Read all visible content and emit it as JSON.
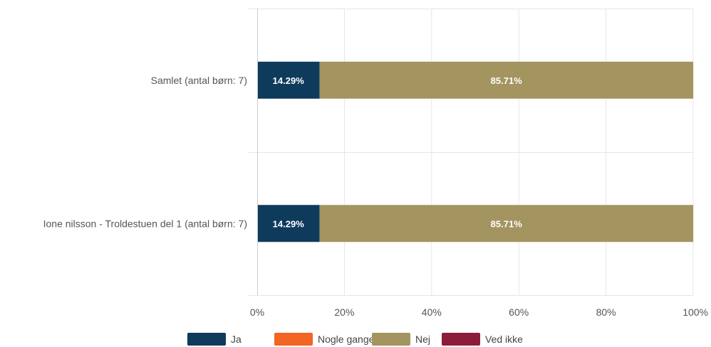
{
  "chart_data": {
    "type": "bar",
    "orientation": "horizontal",
    "stacked": "percent",
    "categories": [
      "Samlet (antal børn: 7)",
      "Ione nilsson - Troldestuen del 1 (antal børn: 7)"
    ],
    "series": [
      {
        "name": "Ja",
        "color": "#0e3a5c",
        "values": [
          14.29,
          14.29
        ],
        "labels": [
          "14.29%",
          "14.29%"
        ]
      },
      {
        "name": "Nogle gange",
        "color": "#f26522",
        "values": [
          0,
          0
        ],
        "labels": [
          "",
          ""
        ]
      },
      {
        "name": "Nej",
        "color": "#a39460",
        "values": [
          85.71,
          85.71
        ],
        "labels": [
          "85.71%",
          "85.71%"
        ]
      },
      {
        "name": "Ved ikke",
        "color": "#8c1c3c",
        "values": [
          0,
          0
        ],
        "labels": [
          "",
          ""
        ]
      }
    ],
    "x_ticks": [
      0,
      20,
      40,
      60,
      80,
      100
    ],
    "x_tick_labels": [
      "0%",
      "20%",
      "40%",
      "60%",
      "80%",
      "100%"
    ],
    "xlim": [
      0,
      100
    ],
    "title": "",
    "xlabel": "",
    "ylabel": "",
    "grid": true,
    "legend": "bottom-center"
  }
}
